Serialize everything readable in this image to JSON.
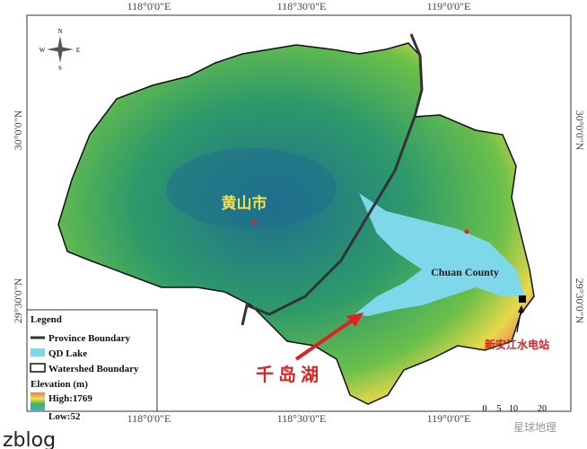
{
  "map": {
    "top_ticks": [
      "118°0'0\"E",
      "118°30'0\"E",
      "119°0'0\"E"
    ],
    "bottom_ticks": [
      "118°0'0\"E",
      "118°30'0\"E",
      "119°0'0\"E"
    ],
    "left_ticks": [
      "30°0'0\"N",
      "29°30'0\"N"
    ],
    "right_ticks": [
      "30°0'0\"N",
      "29°30'0\"N"
    ],
    "compass": {
      "n": "N",
      "s": "S",
      "e": "E",
      "w": "W"
    },
    "labels": {
      "city": "黄山市",
      "county": "Chuan County",
      "station": "新安江水电站",
      "lake": "千 岛 湖"
    },
    "legend": {
      "title": "Legend",
      "province": "Province Boundary",
      "lake": "QD Lake",
      "watershed": "Watershed Boundary",
      "elevation": "Elevation (m)",
      "high": "High:1769",
      "low": "Low:52"
    },
    "scale": [
      "0",
      "5",
      "10",
      "20"
    ]
  },
  "watermarks": [
    "zblog",
    "星球地理"
  ]
}
